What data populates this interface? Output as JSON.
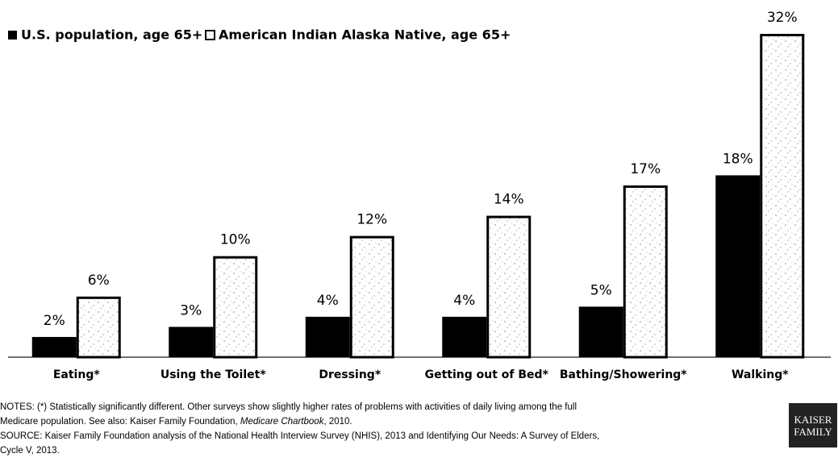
{
  "chart_data": {
    "type": "bar",
    "categories": [
      "Eating*",
      "Using the Toilet*",
      "Dressing*",
      "Getting out of Bed*",
      "Bathing/Showering*",
      "Walking*"
    ],
    "series": [
      {
        "name": "U.S. population, age 65+",
        "color": "#000000",
        "values": [
          2,
          3,
          4,
          4,
          5,
          18
        ],
        "value_labels": [
          "2%",
          "3%",
          "4%",
          "4%",
          "5%",
          "18%"
        ]
      },
      {
        "name": "American Indian Alaska Native, age 65+",
        "color": "#ffffff",
        "values": [
          6,
          10,
          12,
          14,
          17,
          32
        ],
        "value_labels": [
          "6%",
          "10%",
          "12%",
          "14%",
          "17%",
          "32%"
        ]
      }
    ],
    "ylim": [
      0,
      32
    ],
    "legend": "top-left"
  },
  "notes": [
    [
      "NOTES: (*) Statistically significantly different. Other surveys show slightly higher rates of problems with activities of daily living among the full"
    ],
    [
      "Medicare population.  See also: Kaiser Family Foundation, ",
      "Medicare Chartbook",
      ", 2010."
    ],
    [
      "SOURCE: Kaiser Family Foundation analysis of the National Health Interview Survey (NHIS), 2013 and Identifying Our Needs: A Survey of Elders,"
    ],
    [
      "Cycle V, 2013."
    ]
  ],
  "logo": [
    "KAISER",
    "FAMILY"
  ]
}
